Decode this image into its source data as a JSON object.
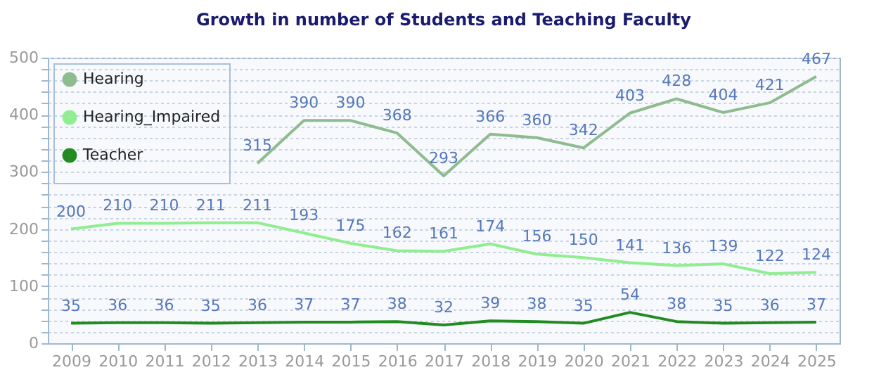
{
  "chart_data": {
    "type": "line",
    "title": "Growth in number of Students and Teaching Faculty",
    "categories": [
      "2009",
      "2010",
      "2011",
      "2012",
      "2013",
      "2014",
      "2015",
      "2016",
      "2017",
      "2018",
      "2019",
      "2020",
      "2021",
      "2022",
      "2023",
      "2024",
      "2025"
    ],
    "series": [
      {
        "name": "Hearing",
        "color": "#8fbc8f",
        "values": [
          null,
          null,
          null,
          null,
          315,
          390,
          390,
          368,
          293,
          366,
          360,
          342,
          403,
          428,
          404,
          421,
          467
        ]
      },
      {
        "name": "Hearing_Impaired",
        "color": "#90ee90",
        "values": [
          200,
          210,
          210,
          211,
          211,
          193,
          175,
          162,
          161,
          174,
          156,
          150,
          141,
          136,
          139,
          122,
          124
        ]
      },
      {
        "name": "Teacher",
        "color": "#228b22",
        "values": [
          35,
          36,
          36,
          35,
          36,
          37,
          37,
          38,
          32,
          39,
          38,
          35,
          54,
          38,
          35,
          36,
          37
        ]
      }
    ],
    "ylim": [
      0,
      500
    ],
    "yticks": [
      0,
      {
        "value": 20,
        "label": null
      },
      {
        "value": 40,
        "label": null
      },
      {
        "value": 60,
        "label": null
      },
      {
        "value": 80,
        "label": null
      },
      100,
      {
        "value": 120,
        "label": null
      },
      {
        "value": 140,
        "label": null
      },
      {
        "value": 160,
        "label": null
      },
      {
        "value": 180,
        "label": null
      },
      200,
      {
        "value": 220,
        "label": null
      },
      {
        "value": 240,
        "label": null
      },
      {
        "value": 260,
        "label": null
      },
      {
        "value": 280,
        "label": null
      },
      300,
      {
        "value": 320,
        "label": null
      },
      {
        "value": 340,
        "label": null
      },
      {
        "value": 360,
        "label": null
      },
      {
        "value": 380,
        "label": null
      },
      400,
      {
        "value": 420,
        "label": null
      },
      {
        "value": 440,
        "label": null
      },
      {
        "value": 460,
        "label": null
      },
      {
        "value": 480,
        "label": null
      },
      500
    ],
    "grid": "y",
    "legend": "top left",
    "data_labels": true,
    "marker": "none",
    "line_style": "solid"
  }
}
